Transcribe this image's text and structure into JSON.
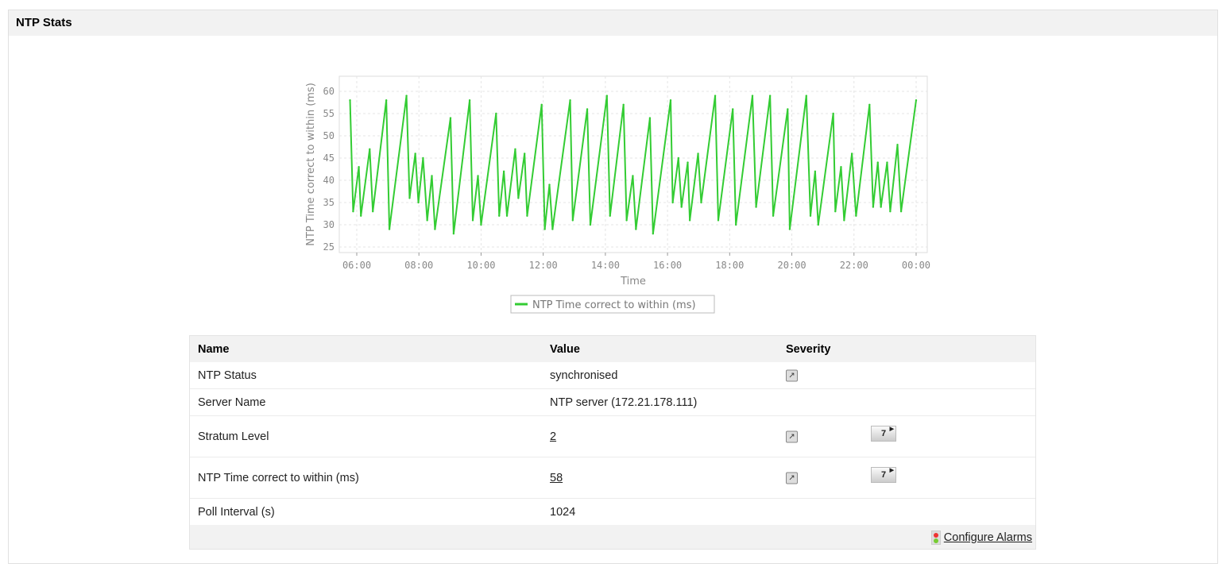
{
  "panel": {
    "title": "NTP Stats"
  },
  "chart_data": {
    "type": "line",
    "ylabel": "NTP Time correct to within (ms)",
    "xlabel": "Time",
    "yticks": [
      25,
      30,
      35,
      40,
      45,
      50,
      55,
      60
    ],
    "xticks": [
      "06:00",
      "08:00",
      "10:00",
      "12:00",
      "14:00",
      "16:00",
      "18:00",
      "20:00",
      "22:00",
      "00:00"
    ],
    "grid": true,
    "legend_position": "bottom",
    "series": [
      {
        "name": "NTP Time correct to within (ms)",
        "color": "#33cc33",
        "x": [
          "05:47",
          "05:53",
          "06:04",
          "06:08",
          "06:25",
          "06:31",
          "06:57",
          "07:03",
          "07:36",
          "07:42",
          "07:53",
          "07:59",
          "08:08",
          "08:16",
          "08:25",
          "08:31",
          "09:01",
          "09:07",
          "09:38",
          "09:44",
          "09:54",
          "10:00",
          "10:29",
          "10:35",
          "10:44",
          "10:50",
          "11:06",
          "11:12",
          "11:24",
          "11:29",
          "11:57",
          "12:03",
          "12:12",
          "12:18",
          "12:52",
          "12:57",
          "13:25",
          "13:31",
          "14:03",
          "14:09",
          "14:35",
          "14:41",
          "14:53",
          "14:59",
          "15:26",
          "15:32",
          "16:06",
          "16:10",
          "16:21",
          "16:27",
          "16:39",
          "16:43",
          "16:59",
          "17:05",
          "17:32",
          "17:38",
          "18:06",
          "18:12",
          "18:44",
          "18:51",
          "19:18",
          "19:24",
          "19:52",
          "19:56",
          "20:28",
          "20:36",
          "20:45",
          "20:51",
          "21:20",
          "21:24",
          "21:35",
          "21:41",
          "21:56",
          "22:04",
          "22:30",
          "22:37",
          "22:46",
          "22:52",
          "23:04",
          "23:10",
          "23:24",
          "23:31",
          "00:00"
        ],
        "y": [
          58,
          33,
          43,
          32,
          47,
          33,
          58,
          29,
          59,
          36,
          46,
          35,
          45,
          31,
          41,
          29,
          54,
          28,
          58,
          31,
          41,
          30,
          55,
          32,
          42,
          32,
          47,
          36,
          46,
          32,
          57,
          29,
          39,
          29,
          58,
          31,
          56,
          30,
          59,
          32,
          57,
          31,
          41,
          29,
          54,
          28,
          58,
          35,
          45,
          34,
          44,
          31,
          46,
          35,
          59,
          31,
          56,
          30,
          59,
          34,
          59,
          32,
          56,
          29,
          59,
          32,
          42,
          30,
          55,
          33,
          43,
          31,
          46,
          32,
          57,
          34,
          44,
          34,
          44,
          33,
          48,
          33,
          58
        ]
      }
    ]
  },
  "table": {
    "headers": [
      "Name",
      "Value",
      "Severity"
    ],
    "rows": [
      {
        "name": "NTP Status",
        "value": "synchronised",
        "link": false,
        "severity_icon": "popout-icon"
      },
      {
        "name": "Server Name",
        "value": "NTP server (172.21.178.111)",
        "link": false
      },
      {
        "name": "Stratum Level",
        "value": "2",
        "link": true,
        "severity_icon": "popout-icon",
        "period": "7"
      },
      {
        "name": "NTP Time correct to within (ms)",
        "value": "58",
        "link": true,
        "severity_icon": "popout-icon",
        "period": "7"
      },
      {
        "name": "Poll Interval (s)",
        "value": "1024",
        "link": false
      }
    ],
    "footer_link": "Configure Alarms"
  }
}
